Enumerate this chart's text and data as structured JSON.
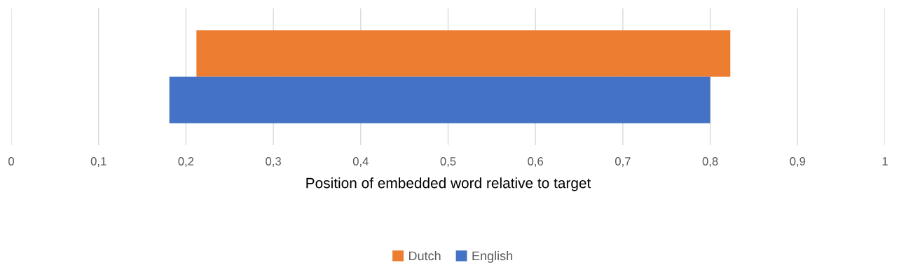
{
  "chart_data": {
    "type": "bar",
    "orientation": "horizontal",
    "xlabel": "Position of embedded word relative to target",
    "categories": [
      null
    ],
    "series": [
      {
        "name": "Dutch",
        "color": "#ed7d31",
        "values": [
          0.611
        ],
        "base": [
          0.212
        ]
      },
      {
        "name": "English",
        "color": "#4472c4",
        "values": [
          0.619
        ],
        "base": [
          0.181
        ]
      }
    ],
    "xlim": [
      0,
      1
    ],
    "xticks": [
      0,
      {
        "value": 0.1,
        "label": "0,1"
      },
      {
        "value": 0.2,
        "label": "0,2"
      },
      {
        "value": 0.3,
        "label": "0,3"
      },
      {
        "value": 0.4,
        "label": "0,4"
      },
      {
        "value": 0.5,
        "label": "0,5"
      },
      {
        "value": 0.6,
        "label": "0,6"
      },
      {
        "value": 0.7,
        "label": "0,7"
      },
      {
        "value": 0.8,
        "label": "0,8"
      },
      {
        "value": 0.9,
        "label": "0,9"
      },
      1
    ],
    "grid": "x",
    "legend": "bottom"
  }
}
